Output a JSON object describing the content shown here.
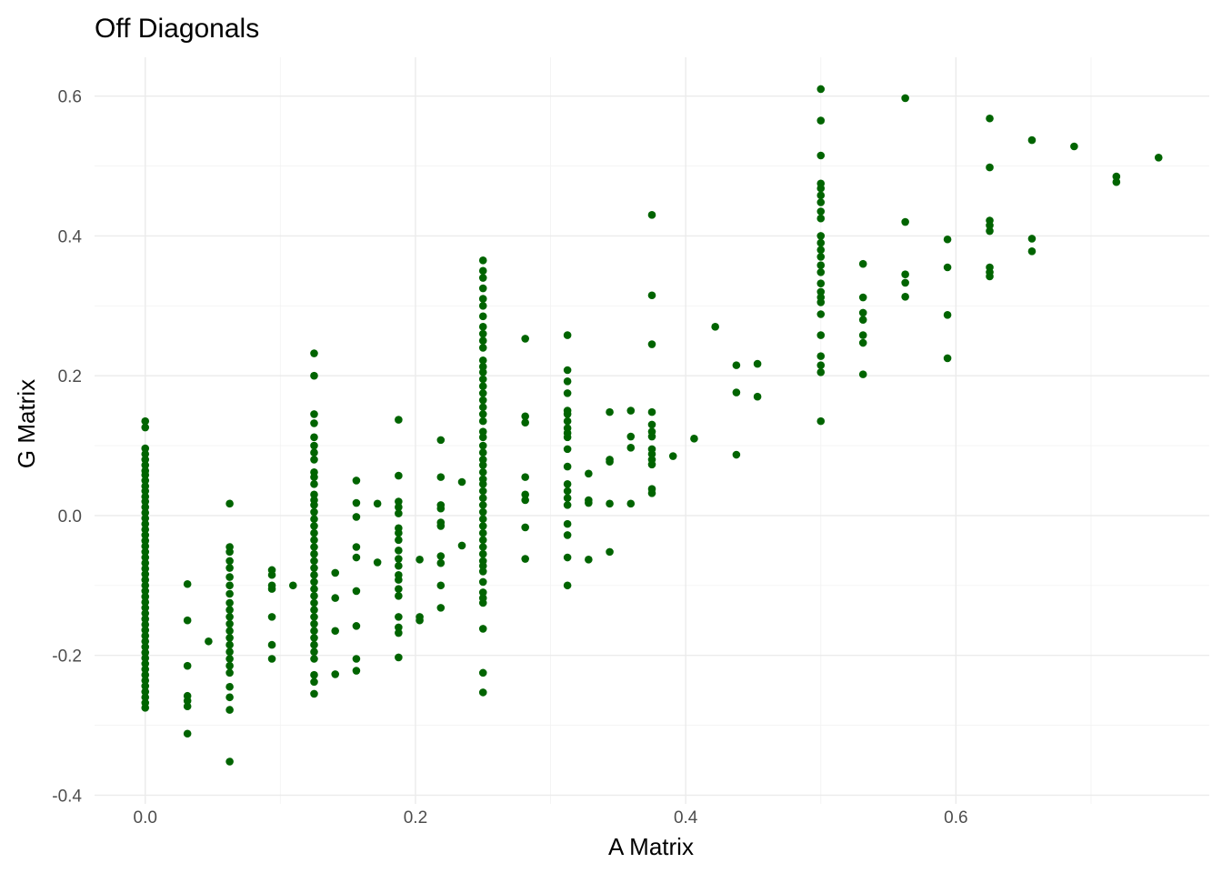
{
  "chart_data": {
    "type": "scatter",
    "title": "Off Diagonals",
    "xlabel": "A Matrix",
    "ylabel": "G Matrix",
    "xlim": [
      -0.0375,
      0.7875
    ],
    "ylim": [
      -0.4125,
      0.6555
    ],
    "x_ticks": [
      0.0,
      0.2,
      0.4,
      0.6
    ],
    "x_tick_labels": [
      "0.0",
      "0.2",
      "0.4",
      "0.6"
    ],
    "y_ticks": [
      -0.4,
      -0.2,
      0.0,
      0.2,
      0.4,
      0.6
    ],
    "y_tick_labels": [
      "-0.4",
      "-0.2",
      "0.0",
      "0.2",
      "0.4",
      "0.6"
    ],
    "grid": true,
    "legend": "none",
    "point_color": "#006400",
    "points": [
      [
        0.0,
        0.135
      ],
      [
        0.0,
        0.126
      ],
      [
        0.0,
        0.096
      ],
      [
        0.0,
        0.088
      ],
      [
        0.0,
        0.08
      ],
      [
        0.0,
        0.072
      ],
      [
        0.0,
        0.064
      ],
      [
        0.0,
        0.058
      ],
      [
        0.0,
        0.05
      ],
      [
        0.0,
        0.042
      ],
      [
        0.0,
        0.035
      ],
      [
        0.0,
        0.027
      ],
      [
        0.0,
        0.02
      ],
      [
        0.0,
        0.012
      ],
      [
        0.0,
        0.004
      ],
      [
        0.0,
        -0.004
      ],
      [
        0.0,
        -0.012
      ],
      [
        0.0,
        -0.02
      ],
      [
        0.0,
        -0.028
      ],
      [
        0.0,
        -0.036
      ],
      [
        0.0,
        -0.044
      ],
      [
        0.0,
        -0.052
      ],
      [
        0.0,
        -0.06
      ],
      [
        0.0,
        -0.068
      ],
      [
        0.0,
        -0.076
      ],
      [
        0.0,
        -0.084
      ],
      [
        0.0,
        -0.092
      ],
      [
        0.0,
        -0.1
      ],
      [
        0.0,
        -0.108
      ],
      [
        0.0,
        -0.116
      ],
      [
        0.0,
        -0.124
      ],
      [
        0.0,
        -0.132
      ],
      [
        0.0,
        -0.14
      ],
      [
        0.0,
        -0.148
      ],
      [
        0.0,
        -0.156
      ],
      [
        0.0,
        -0.164
      ],
      [
        0.0,
        -0.172
      ],
      [
        0.0,
        -0.18
      ],
      [
        0.0,
        -0.188
      ],
      [
        0.0,
        -0.196
      ],
      [
        0.0,
        -0.204
      ],
      [
        0.0,
        -0.212
      ],
      [
        0.0,
        -0.22
      ],
      [
        0.0,
        -0.228
      ],
      [
        0.0,
        -0.236
      ],
      [
        0.0,
        -0.244
      ],
      [
        0.0,
        -0.252
      ],
      [
        0.0,
        -0.26
      ],
      [
        0.0,
        -0.268
      ],
      [
        0.0,
        -0.275
      ],
      [
        0.03125,
        -0.098
      ],
      [
        0.03125,
        -0.15
      ],
      [
        0.03125,
        -0.215
      ],
      [
        0.03125,
        -0.258
      ],
      [
        0.03125,
        -0.265
      ],
      [
        0.03125,
        -0.273
      ],
      [
        0.03125,
        -0.312
      ],
      [
        0.046875,
        -0.18
      ],
      [
        0.0625,
        0.017
      ],
      [
        0.0625,
        -0.045
      ],
      [
        0.0625,
        -0.052
      ],
      [
        0.0625,
        -0.065
      ],
      [
        0.0625,
        -0.075
      ],
      [
        0.0625,
        -0.088
      ],
      [
        0.0625,
        -0.1
      ],
      [
        0.0625,
        -0.112
      ],
      [
        0.0625,
        -0.125
      ],
      [
        0.0625,
        -0.135
      ],
      [
        0.0625,
        -0.145
      ],
      [
        0.0625,
        -0.155
      ],
      [
        0.0625,
        -0.165
      ],
      [
        0.0625,
        -0.175
      ],
      [
        0.0625,
        -0.185
      ],
      [
        0.0625,
        -0.195
      ],
      [
        0.0625,
        -0.205
      ],
      [
        0.0625,
        -0.215
      ],
      [
        0.0625,
        -0.225
      ],
      [
        0.0625,
        -0.245
      ],
      [
        0.0625,
        -0.26
      ],
      [
        0.0625,
        -0.278
      ],
      [
        0.0625,
        -0.352
      ],
      [
        0.09375,
        -0.078
      ],
      [
        0.09375,
        -0.085
      ],
      [
        0.09375,
        -0.1
      ],
      [
        0.09375,
        -0.105
      ],
      [
        0.09375,
        -0.145
      ],
      [
        0.09375,
        -0.185
      ],
      [
        0.09375,
        -0.205
      ],
      [
        0.109375,
        -0.1
      ],
      [
        0.125,
        0.232
      ],
      [
        0.125,
        0.2
      ],
      [
        0.125,
        0.145
      ],
      [
        0.125,
        0.132
      ],
      [
        0.125,
        0.112
      ],
      [
        0.125,
        0.1
      ],
      [
        0.125,
        0.09
      ],
      [
        0.125,
        0.08
      ],
      [
        0.125,
        0.062
      ],
      [
        0.125,
        0.055
      ],
      [
        0.125,
        0.045
      ],
      [
        0.125,
        0.03
      ],
      [
        0.125,
        0.022
      ],
      [
        0.125,
        0.015
      ],
      [
        0.125,
        0.005
      ],
      [
        0.125,
        -0.005
      ],
      [
        0.125,
        -0.015
      ],
      [
        0.125,
        -0.025
      ],
      [
        0.125,
        -0.035
      ],
      [
        0.125,
        -0.045
      ],
      [
        0.125,
        -0.055
      ],
      [
        0.125,
        -0.065
      ],
      [
        0.125,
        -0.075
      ],
      [
        0.125,
        -0.085
      ],
      [
        0.125,
        -0.095
      ],
      [
        0.125,
        -0.105
      ],
      [
        0.125,
        -0.115
      ],
      [
        0.125,
        -0.125
      ],
      [
        0.125,
        -0.135
      ],
      [
        0.125,
        -0.145
      ],
      [
        0.125,
        -0.155
      ],
      [
        0.125,
        -0.165
      ],
      [
        0.125,
        -0.175
      ],
      [
        0.125,
        -0.185
      ],
      [
        0.125,
        -0.195
      ],
      [
        0.125,
        -0.205
      ],
      [
        0.125,
        -0.228
      ],
      [
        0.125,
        -0.238
      ],
      [
        0.125,
        -0.255
      ],
      [
        0.140625,
        -0.082
      ],
      [
        0.140625,
        -0.118
      ],
      [
        0.140625,
        -0.165
      ],
      [
        0.140625,
        -0.227
      ],
      [
        0.15625,
        0.05
      ],
      [
        0.15625,
        0.018
      ],
      [
        0.15625,
        -0.002
      ],
      [
        0.15625,
        -0.045
      ],
      [
        0.15625,
        -0.06
      ],
      [
        0.15625,
        -0.108
      ],
      [
        0.15625,
        -0.158
      ],
      [
        0.15625,
        -0.205
      ],
      [
        0.15625,
        -0.222
      ],
      [
        0.171875,
        0.017
      ],
      [
        0.171875,
        -0.067
      ],
      [
        0.1875,
        0.137
      ],
      [
        0.1875,
        0.057
      ],
      [
        0.1875,
        0.02
      ],
      [
        0.1875,
        0.012
      ],
      [
        0.1875,
        0.003
      ],
      [
        0.1875,
        -0.018
      ],
      [
        0.1875,
        -0.025
      ],
      [
        0.1875,
        -0.035
      ],
      [
        0.1875,
        -0.05
      ],
      [
        0.1875,
        -0.062
      ],
      [
        0.1875,
        -0.072
      ],
      [
        0.1875,
        -0.085
      ],
      [
        0.1875,
        -0.092
      ],
      [
        0.1875,
        -0.105
      ],
      [
        0.1875,
        -0.115
      ],
      [
        0.1875,
        -0.145
      ],
      [
        0.1875,
        -0.16
      ],
      [
        0.1875,
        -0.168
      ],
      [
        0.1875,
        -0.203
      ],
      [
        0.203125,
        -0.063
      ],
      [
        0.203125,
        -0.145
      ],
      [
        0.203125,
        -0.15
      ],
      [
        0.21875,
        0.108
      ],
      [
        0.21875,
        0.055
      ],
      [
        0.21875,
        0.015
      ],
      [
        0.21875,
        0.01
      ],
      [
        0.21875,
        -0.01
      ],
      [
        0.21875,
        -0.015
      ],
      [
        0.21875,
        -0.058
      ],
      [
        0.21875,
        -0.068
      ],
      [
        0.21875,
        -0.1
      ],
      [
        0.21875,
        -0.132
      ],
      [
        0.234375,
        0.048
      ],
      [
        0.234375,
        -0.043
      ],
      [
        0.25,
        0.365
      ],
      [
        0.25,
        0.35
      ],
      [
        0.25,
        0.34
      ],
      [
        0.25,
        0.325
      ],
      [
        0.25,
        0.31
      ],
      [
        0.25,
        0.3
      ],
      [
        0.25,
        0.285
      ],
      [
        0.25,
        0.27
      ],
      [
        0.25,
        0.26
      ],
      [
        0.25,
        0.25
      ],
      [
        0.25,
        0.24
      ],
      [
        0.25,
        0.222
      ],
      [
        0.25,
        0.213
      ],
      [
        0.25,
        0.205
      ],
      [
        0.25,
        0.195
      ],
      [
        0.25,
        0.185
      ],
      [
        0.25,
        0.175
      ],
      [
        0.25,
        0.165
      ],
      [
        0.25,
        0.155
      ],
      [
        0.25,
        0.145
      ],
      [
        0.25,
        0.135
      ],
      [
        0.25,
        0.12
      ],
      [
        0.25,
        0.112
      ],
      [
        0.25,
        0.1
      ],
      [
        0.25,
        0.09
      ],
      [
        0.25,
        0.08
      ],
      [
        0.25,
        0.072
      ],
      [
        0.25,
        0.062
      ],
      [
        0.25,
        0.052
      ],
      [
        0.25,
        0.045
      ],
      [
        0.25,
        0.035
      ],
      [
        0.25,
        0.025
      ],
      [
        0.25,
        0.015
      ],
      [
        0.25,
        0.005
      ],
      [
        0.25,
        -0.005
      ],
      [
        0.25,
        -0.015
      ],
      [
        0.25,
        -0.025
      ],
      [
        0.25,
        -0.035
      ],
      [
        0.25,
        -0.045
      ],
      [
        0.25,
        -0.055
      ],
      [
        0.25,
        -0.065
      ],
      [
        0.25,
        -0.072
      ],
      [
        0.25,
        -0.08
      ],
      [
        0.25,
        -0.095
      ],
      [
        0.25,
        -0.11
      ],
      [
        0.25,
        -0.118
      ],
      [
        0.25,
        -0.125
      ],
      [
        0.25,
        -0.162
      ],
      [
        0.25,
        -0.225
      ],
      [
        0.25,
        -0.253
      ],
      [
        0.28125,
        0.253
      ],
      [
        0.28125,
        0.142
      ],
      [
        0.28125,
        0.133
      ],
      [
        0.28125,
        0.055
      ],
      [
        0.28125,
        0.03
      ],
      [
        0.28125,
        0.022
      ],
      [
        0.28125,
        -0.017
      ],
      [
        0.28125,
        -0.062
      ],
      [
        0.3125,
        0.258
      ],
      [
        0.3125,
        0.208
      ],
      [
        0.3125,
        0.192
      ],
      [
        0.3125,
        0.175
      ],
      [
        0.3125,
        0.15
      ],
      [
        0.3125,
        0.145
      ],
      [
        0.3125,
        0.135
      ],
      [
        0.3125,
        0.125
      ],
      [
        0.3125,
        0.118
      ],
      [
        0.3125,
        0.112
      ],
      [
        0.3125,
        0.095
      ],
      [
        0.3125,
        0.07
      ],
      [
        0.3125,
        0.045
      ],
      [
        0.3125,
        0.035
      ],
      [
        0.3125,
        0.025
      ],
      [
        0.3125,
        0.015
      ],
      [
        0.3125,
        -0.012
      ],
      [
        0.3125,
        -0.028
      ],
      [
        0.3125,
        -0.06
      ],
      [
        0.3125,
        -0.1
      ],
      [
        0.328125,
        0.06
      ],
      [
        0.328125,
        0.022
      ],
      [
        0.328125,
        0.018
      ],
      [
        0.328125,
        -0.063
      ],
      [
        0.34375,
        0.148
      ],
      [
        0.34375,
        0.08
      ],
      [
        0.34375,
        0.077
      ],
      [
        0.34375,
        0.017
      ],
      [
        0.34375,
        -0.052
      ],
      [
        0.359375,
        0.15
      ],
      [
        0.359375,
        0.113
      ],
      [
        0.359375,
        0.097
      ],
      [
        0.359375,
        0.017
      ],
      [
        0.375,
        0.43
      ],
      [
        0.375,
        0.315
      ],
      [
        0.375,
        0.245
      ],
      [
        0.375,
        0.148
      ],
      [
        0.375,
        0.13
      ],
      [
        0.375,
        0.12
      ],
      [
        0.375,
        0.113
      ],
      [
        0.375,
        0.095
      ],
      [
        0.375,
        0.088
      ],
      [
        0.375,
        0.08
      ],
      [
        0.375,
        0.073
      ],
      [
        0.375,
        0.038
      ],
      [
        0.375,
        0.032
      ],
      [
        0.390625,
        0.085
      ],
      [
        0.40625,
        0.11
      ],
      [
        0.421875,
        0.27
      ],
      [
        0.4375,
        0.215
      ],
      [
        0.4375,
        0.176
      ],
      [
        0.4375,
        0.087
      ],
      [
        0.453125,
        0.217
      ],
      [
        0.453125,
        0.17
      ],
      [
        0.5,
        0.61
      ],
      [
        0.5,
        0.565
      ],
      [
        0.5,
        0.515
      ],
      [
        0.5,
        0.475
      ],
      [
        0.5,
        0.468
      ],
      [
        0.5,
        0.458
      ],
      [
        0.5,
        0.448
      ],
      [
        0.5,
        0.435
      ],
      [
        0.5,
        0.425
      ],
      [
        0.5,
        0.4
      ],
      [
        0.5,
        0.39
      ],
      [
        0.5,
        0.38
      ],
      [
        0.5,
        0.37
      ],
      [
        0.5,
        0.358
      ],
      [
        0.5,
        0.348
      ],
      [
        0.5,
        0.332
      ],
      [
        0.5,
        0.32
      ],
      [
        0.5,
        0.312
      ],
      [
        0.5,
        0.305
      ],
      [
        0.5,
        0.288
      ],
      [
        0.5,
        0.258
      ],
      [
        0.5,
        0.228
      ],
      [
        0.5,
        0.215
      ],
      [
        0.5,
        0.205
      ],
      [
        0.5,
        0.135
      ],
      [
        0.53125,
        0.36
      ],
      [
        0.53125,
        0.312
      ],
      [
        0.53125,
        0.29
      ],
      [
        0.53125,
        0.28
      ],
      [
        0.53125,
        0.258
      ],
      [
        0.53125,
        0.247
      ],
      [
        0.53125,
        0.202
      ],
      [
        0.5625,
        0.597
      ],
      [
        0.5625,
        0.42
      ],
      [
        0.5625,
        0.345
      ],
      [
        0.5625,
        0.333
      ],
      [
        0.5625,
        0.313
      ],
      [
        0.59375,
        0.395
      ],
      [
        0.59375,
        0.355
      ],
      [
        0.59375,
        0.287
      ],
      [
        0.59375,
        0.225
      ],
      [
        0.625,
        0.568
      ],
      [
        0.625,
        0.498
      ],
      [
        0.625,
        0.422
      ],
      [
        0.625,
        0.415
      ],
      [
        0.625,
        0.407
      ],
      [
        0.625,
        0.355
      ],
      [
        0.625,
        0.348
      ],
      [
        0.625,
        0.342
      ],
      [
        0.65625,
        0.537
      ],
      [
        0.65625,
        0.396
      ],
      [
        0.65625,
        0.378
      ],
      [
        0.6875,
        0.528
      ],
      [
        0.71875,
        0.485
      ],
      [
        0.71875,
        0.477
      ],
      [
        0.75,
        0.512
      ]
    ]
  }
}
